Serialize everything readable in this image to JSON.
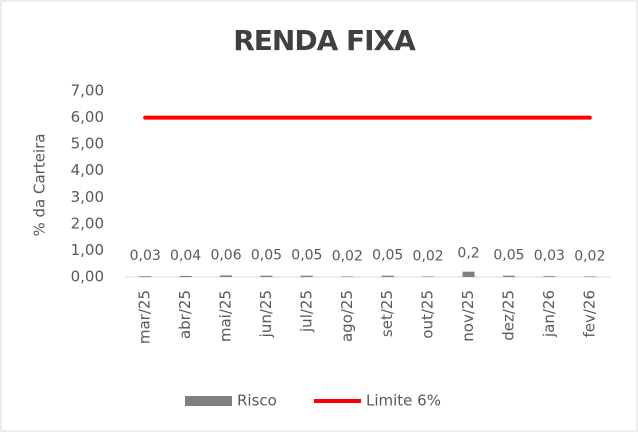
{
  "chart_data": {
    "type": "bar",
    "title": "RENDA FIXA",
    "y_label": "% da Carteira",
    "categories": [
      "mar/25",
      "abr/25",
      "mai/25",
      "jun/25",
      "jul/25",
      "ago/25",
      "set/25",
      "out/25",
      "nov/25",
      "dez/25",
      "jan/26",
      "fev/26"
    ],
    "series": [
      {
        "name": "Risco",
        "color": "#7f7f7f",
        "type": "bar",
        "values": [
          0.03,
          0.04,
          0.06,
          0.05,
          0.05,
          0.02,
          0.05,
          0.02,
          0.2,
          0.05,
          0.03,
          0.02
        ],
        "value_labels": [
          "0,03",
          "0,04",
          "0,06",
          "0,05",
          "0,05",
          "0,02",
          "0,05",
          "0,02",
          "0,2",
          "0,05",
          "0,03",
          "0,02"
        ]
      },
      {
        "name": "Limite 6%",
        "color": "#ff0000",
        "type": "line",
        "values": [
          6,
          6,
          6,
          6,
          6,
          6,
          6,
          6,
          6,
          6,
          6,
          6
        ]
      }
    ],
    "ylim": [
      0,
      7
    ],
    "yticks": [
      {
        "value": 0,
        "label": "0,00"
      },
      {
        "value": 1,
        "label": "1,00"
      },
      {
        "value": 2,
        "label": "2,00"
      },
      {
        "value": 3,
        "label": "3,00"
      },
      {
        "value": 4,
        "label": "4,00"
      },
      {
        "value": 5,
        "label": "5,00"
      },
      {
        "value": 6,
        "label": "6,00"
      },
      {
        "value": 7,
        "label": "7,00"
      }
    ],
    "grid": false,
    "legend": "bottom"
  }
}
